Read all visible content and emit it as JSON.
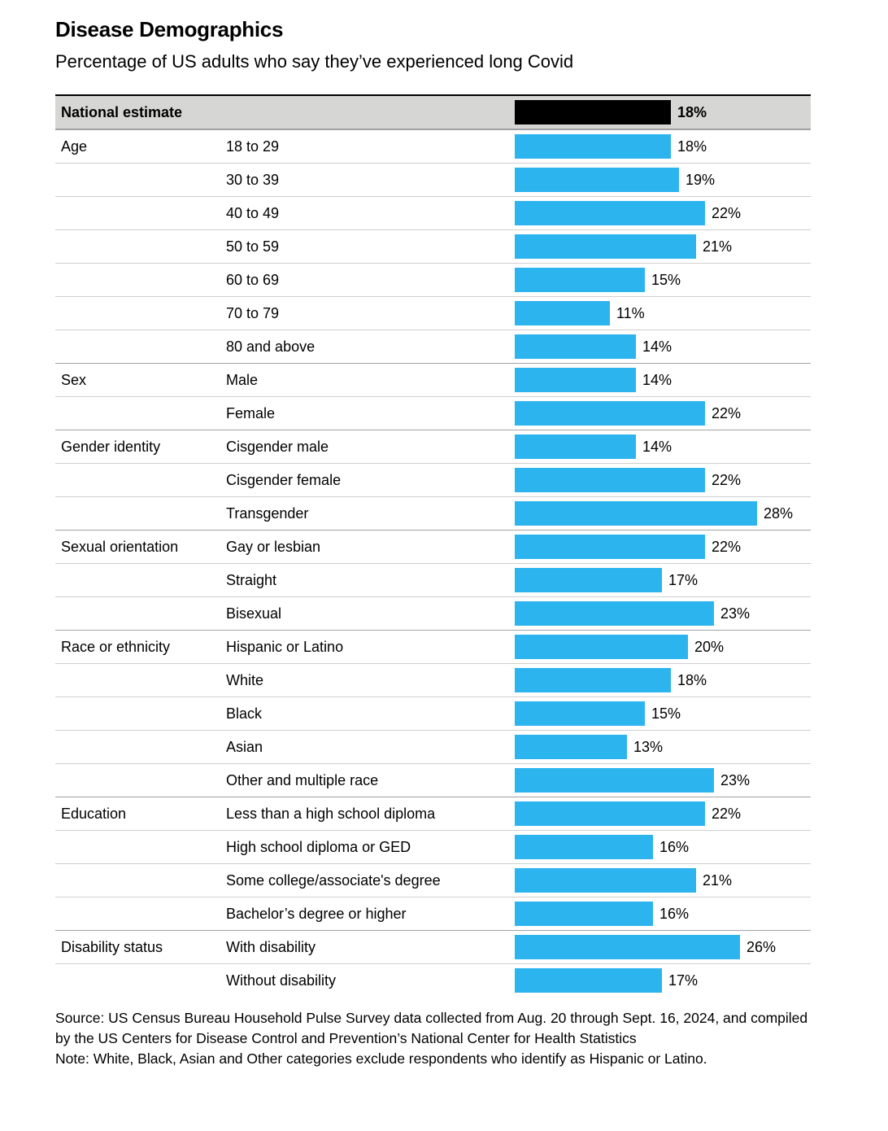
{
  "chart_data": {
    "type": "bar",
    "orientation": "horizontal",
    "title": "Disease Demographics",
    "subtitle": "Percentage of US adults who say they’ve experienced long Covid",
    "unit": "%",
    "xlim": [
      0,
      28
    ],
    "grid": false,
    "legend": false,
    "national_estimate": {
      "label": "National estimate",
      "value": 18,
      "display": "18%"
    },
    "groups": [
      {
        "label": "Age",
        "items": [
          {
            "label": "18 to 29",
            "value": 18,
            "display": "18%"
          },
          {
            "label": "30 to 39",
            "value": 19,
            "display": "19%"
          },
          {
            "label": "40 to 49",
            "value": 22,
            "display": "22%"
          },
          {
            "label": "50 to 59",
            "value": 21,
            "display": "21%"
          },
          {
            "label": "60 to 69",
            "value": 15,
            "display": "15%"
          },
          {
            "label": "70 to 79",
            "value": 11,
            "display": "11%"
          },
          {
            "label": "80 and above",
            "value": 14,
            "display": "14%"
          }
        ]
      },
      {
        "label": "Sex",
        "items": [
          {
            "label": "Male",
            "value": 14,
            "display": "14%"
          },
          {
            "label": "Female",
            "value": 22,
            "display": "22%"
          }
        ]
      },
      {
        "label": "Gender identity",
        "items": [
          {
            "label": "Cisgender male",
            "value": 14,
            "display": "14%"
          },
          {
            "label": "Cisgender female",
            "value": 22,
            "display": "22%"
          },
          {
            "label": "Transgender",
            "value": 28,
            "display": "28%"
          }
        ]
      },
      {
        "label": "Sexual orientation",
        "items": [
          {
            "label": "Gay or lesbian",
            "value": 22,
            "display": "22%"
          },
          {
            "label": "Straight",
            "value": 17,
            "display": "17%"
          },
          {
            "label": "Bisexual",
            "value": 23,
            "display": "23%"
          }
        ]
      },
      {
        "label": "Race or ethnicity",
        "items": [
          {
            "label": "Hispanic or Latino",
            "value": 20,
            "display": "20%"
          },
          {
            "label": "White",
            "value": 18,
            "display": "18%"
          },
          {
            "label": "Black",
            "value": 15,
            "display": "15%"
          },
          {
            "label": "Asian",
            "value": 13,
            "display": "13%"
          },
          {
            "label": "Other and multiple race",
            "value": 23,
            "display": "23%"
          }
        ]
      },
      {
        "label": "Education",
        "items": [
          {
            "label": "Less than a high school diploma",
            "value": 22,
            "display": "22%"
          },
          {
            "label": "High school diploma or GED",
            "value": 16,
            "display": "16%"
          },
          {
            "label": "Some college/associate's degree",
            "value": 21,
            "display": "21%"
          },
          {
            "label": "Bachelor’s degree or higher",
            "value": 16,
            "display": "16%"
          }
        ]
      },
      {
        "label": "Disability status",
        "items": [
          {
            "label": "With disability",
            "value": 26,
            "display": "26%"
          },
          {
            "label": "Without disability",
            "value": 17,
            "display": "17%"
          }
        ]
      }
    ]
  },
  "footer": {
    "source": "Source: US Census Bureau Household Pulse Survey data collected from Aug. 20 through Sept. 16, 2024, and compiled by the US Centers for Disease Control and Prevention’s National Center for Health Statistics",
    "note": "Note: White, Black, Asian and Other categories exclude respondents who identify as Hispanic or Latino."
  },
  "colors": {
    "bar": "#2cb4ef",
    "national_bar": "#000000",
    "national_row_bg": "#d6d6d4"
  }
}
